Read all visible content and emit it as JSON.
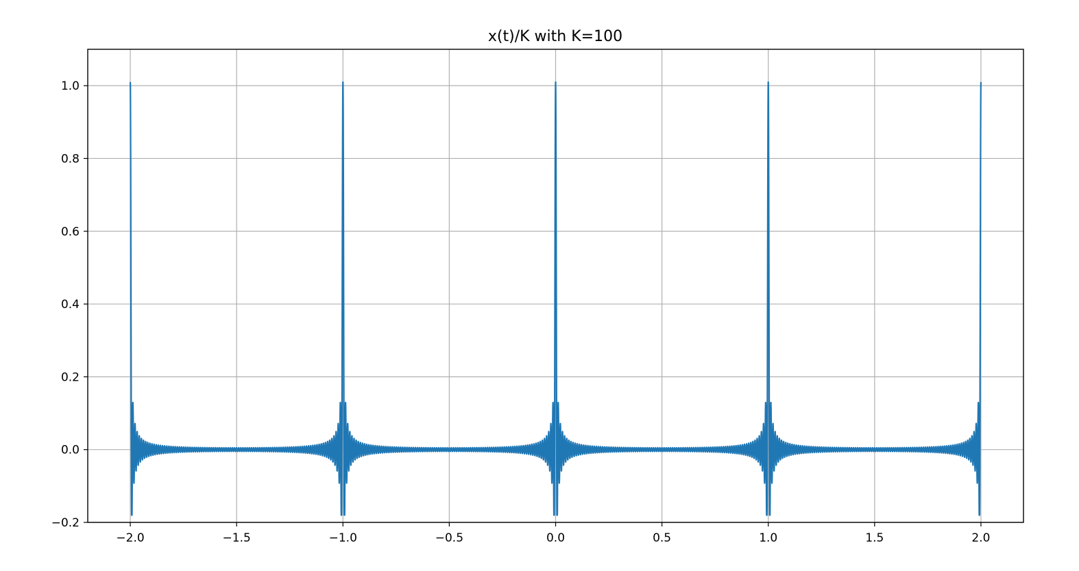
{
  "chart_data": {
    "type": "line",
    "title": "x(t)/K with K=100",
    "xlabel": "",
    "ylabel": "",
    "xlim": [
      -2.2,
      2.2
    ],
    "ylim": [
      -0.2,
      1.1
    ],
    "xticks": [
      -2.0,
      -1.5,
      -1.0,
      -0.5,
      0.0,
      0.5,
      1.0,
      1.5,
      2.0
    ],
    "xtick_labels": [
      "−2.0",
      "−1.5",
      "−1.0",
      "−0.5",
      "0.0",
      "0.5",
      "1.0",
      "1.5",
      "2.0"
    ],
    "yticks": [
      -0.2,
      0.0,
      0.2,
      0.4,
      0.6,
      0.8,
      1.0
    ],
    "ytick_labels": [
      "−0.2",
      "0.0",
      "0.2",
      "0.4",
      "0.6",
      "0.8",
      "1.0"
    ],
    "grid": true,
    "legend": "none",
    "series": [
      {
        "color": "#1f77b4",
        "function": "dirichlet_kernel_normalized",
        "K": 100,
        "period": 1.0,
        "x_range": [
          -2.0,
          2.0
        ],
        "peak_positions": [
          -2.0,
          -1.0,
          0.0,
          1.0,
          2.0
        ],
        "peak_value": 1.01,
        "min_value": -0.18
      }
    ]
  }
}
